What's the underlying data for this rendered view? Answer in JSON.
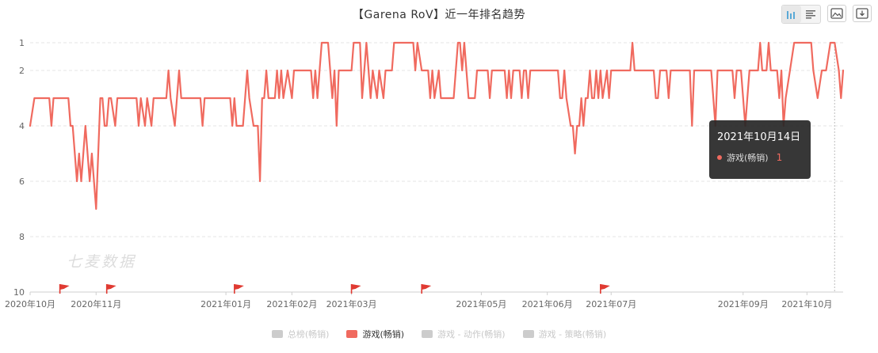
{
  "title": "【Garena RoV】近一年排名趋势",
  "toolbar": {
    "icons": [
      "bar-chart-icon",
      "list-icon",
      "image-icon",
      "download-icon"
    ]
  },
  "watermark": "七麦数据",
  "tooltip": {
    "date": "2021年10月14日",
    "series": "游戏(畅销)",
    "value": "1"
  },
  "legend": [
    {
      "label": "总榜(畅销)",
      "color": "#cccccc",
      "active": false
    },
    {
      "label": "游戏(畅销)",
      "color": "#f06a5f",
      "active": true
    },
    {
      "label": "游戏 - 动作(畅销)",
      "color": "#cccccc",
      "active": false
    },
    {
      "label": "游戏 - 策略(畅销)",
      "color": "#cccccc",
      "active": false
    }
  ],
  "colors": {
    "line": "#f06a5f",
    "grid": "#e6e6e6",
    "axis": "#d9d9d9",
    "flag": "#e03a32"
  },
  "chart_data": {
    "type": "line",
    "title": "【Garena RoV】近一年排名趋势",
    "y_inverted": true,
    "ylim": [
      1,
      10
    ],
    "yticks": [
      1,
      2,
      4,
      6,
      8,
      10
    ],
    "xlim": [
      "2020-10-01",
      "2021-10-18"
    ],
    "xticks": [
      {
        "date": "2020-10-01",
        "label": "2020年10月"
      },
      {
        "date": "2020-11-01",
        "label": "2020年11月"
      },
      {
        "date": "2021-01-01",
        "label": "2021年01月"
      },
      {
        "date": "2021-02-01",
        "label": "2021年02月"
      },
      {
        "date": "2021-03-01",
        "label": "2021年03月"
      },
      {
        "date": "2021-05-01",
        "label": "2021年05月"
      },
      {
        "date": "2021-06-01",
        "label": "2021年06月"
      },
      {
        "date": "2021-07-01",
        "label": "2021年07月"
      },
      {
        "date": "2021-09-01",
        "label": "2021年09月"
      },
      {
        "date": "2021-10-01",
        "label": "2021年10月"
      }
    ],
    "event_flags": [
      "2020-10-15",
      "2020-11-06",
      "2021-01-05",
      "2021-03-01",
      "2021-04-03",
      "2021-06-26"
    ],
    "series": [
      {
        "name": "游戏(畅销)",
        "points": [
          [
            "2020-10-01",
            4
          ],
          [
            "2020-10-03",
            3
          ],
          [
            "2020-10-10",
            3
          ],
          [
            "2020-10-11",
            4
          ],
          [
            "2020-10-12",
            3
          ],
          [
            "2020-10-19",
            3
          ],
          [
            "2020-10-20",
            4
          ],
          [
            "2020-10-21",
            4
          ],
          [
            "2020-10-23",
            6
          ],
          [
            "2020-10-24",
            5
          ],
          [
            "2020-10-25",
            6
          ],
          [
            "2020-10-27",
            4
          ],
          [
            "2020-10-29",
            6
          ],
          [
            "2020-10-30",
            5
          ],
          [
            "2020-11-01",
            7
          ],
          [
            "2020-11-03",
            3
          ],
          [
            "2020-11-04",
            3
          ],
          [
            "2020-11-05",
            4
          ],
          [
            "2020-11-06",
            4
          ],
          [
            "2020-11-07",
            3
          ],
          [
            "2020-11-08",
            3
          ],
          [
            "2020-11-10",
            4
          ],
          [
            "2020-11-11",
            3
          ],
          [
            "2020-11-20",
            3
          ],
          [
            "2020-11-21",
            4
          ],
          [
            "2020-11-22",
            3
          ],
          [
            "2020-11-24",
            4
          ],
          [
            "2020-11-25",
            3
          ],
          [
            "2020-11-27",
            4
          ],
          [
            "2020-11-28",
            3
          ],
          [
            "2020-12-04",
            3
          ],
          [
            "2020-12-05",
            2
          ],
          [
            "2020-12-06",
            3
          ],
          [
            "2020-12-08",
            4
          ],
          [
            "2020-12-09",
            3
          ],
          [
            "2020-12-10",
            2
          ],
          [
            "2020-12-11",
            3
          ],
          [
            "2020-12-20",
            3
          ],
          [
            "2020-12-21",
            4
          ],
          [
            "2020-12-22",
            3
          ],
          [
            "2021-01-03",
            3
          ],
          [
            "2021-01-04",
            4
          ],
          [
            "2021-01-05",
            3
          ],
          [
            "2021-01-06",
            4
          ],
          [
            "2021-01-09",
            4
          ],
          [
            "2021-01-10",
            3
          ],
          [
            "2021-01-11",
            2
          ],
          [
            "2021-01-12",
            3
          ],
          [
            "2021-01-14",
            4
          ],
          [
            "2021-01-16",
            4
          ],
          [
            "2021-01-17",
            6
          ],
          [
            "2021-01-18",
            3
          ],
          [
            "2021-01-19",
            3
          ],
          [
            "2021-01-20",
            2
          ],
          [
            "2021-01-21",
            3
          ],
          [
            "2021-01-24",
            3
          ],
          [
            "2021-01-25",
            2
          ],
          [
            "2021-01-26",
            3
          ],
          [
            "2021-01-27",
            2
          ],
          [
            "2021-01-28",
            3
          ],
          [
            "2021-01-30",
            2
          ],
          [
            "2021-02-01",
            3
          ],
          [
            "2021-02-02",
            2
          ],
          [
            "2021-02-10",
            2
          ],
          [
            "2021-02-11",
            3
          ],
          [
            "2021-02-12",
            2
          ],
          [
            "2021-02-13",
            3
          ],
          [
            "2021-02-14",
            2
          ],
          [
            "2021-02-15",
            1
          ],
          [
            "2021-02-18",
            1
          ],
          [
            "2021-02-19",
            2
          ],
          [
            "2021-02-20",
            3
          ],
          [
            "2021-02-21",
            2
          ],
          [
            "2021-02-22",
            4
          ],
          [
            "2021-02-23",
            2
          ],
          [
            "2021-03-01",
            2
          ],
          [
            "2021-03-02",
            1
          ],
          [
            "2021-03-05",
            1
          ],
          [
            "2021-03-06",
            3
          ],
          [
            "2021-03-07",
            2
          ],
          [
            "2021-03-08",
            1
          ],
          [
            "2021-03-09",
            2
          ],
          [
            "2021-03-10",
            3
          ],
          [
            "2021-03-11",
            2
          ],
          [
            "2021-03-13",
            3
          ],
          [
            "2021-03-14",
            2
          ],
          [
            "2021-03-16",
            3
          ],
          [
            "2021-03-17",
            2
          ],
          [
            "2021-03-20",
            2
          ],
          [
            "2021-03-21",
            1
          ],
          [
            "2021-03-30",
            1
          ],
          [
            "2021-03-31",
            2
          ],
          [
            "2021-04-01",
            1
          ],
          [
            "2021-04-03",
            2
          ],
          [
            "2021-04-06",
            2
          ],
          [
            "2021-04-07",
            3
          ],
          [
            "2021-04-08",
            2
          ],
          [
            "2021-04-09",
            3
          ],
          [
            "2021-04-11",
            2
          ],
          [
            "2021-04-12",
            3
          ],
          [
            "2021-04-18",
            3
          ],
          [
            "2021-04-19",
            2
          ],
          [
            "2021-04-20",
            1
          ],
          [
            "2021-04-21",
            1
          ],
          [
            "2021-04-22",
            2
          ],
          [
            "2021-04-23",
            1
          ],
          [
            "2021-04-24",
            2
          ],
          [
            "2021-04-25",
            3
          ],
          [
            "2021-04-28",
            3
          ],
          [
            "2021-04-29",
            2
          ],
          [
            "2021-05-04",
            2
          ],
          [
            "2021-05-05",
            3
          ],
          [
            "2021-05-06",
            2
          ],
          [
            "2021-05-12",
            2
          ],
          [
            "2021-05-13",
            3
          ],
          [
            "2021-05-14",
            2
          ],
          [
            "2021-05-15",
            3
          ],
          [
            "2021-05-16",
            2
          ],
          [
            "2021-05-19",
            2
          ],
          [
            "2021-05-20",
            3
          ],
          [
            "2021-05-21",
            2
          ],
          [
            "2021-05-22",
            2
          ],
          [
            "2021-05-23",
            3
          ],
          [
            "2021-05-24",
            2
          ],
          [
            "2021-06-06",
            2
          ],
          [
            "2021-06-07",
            3
          ],
          [
            "2021-06-08",
            3
          ],
          [
            "2021-06-09",
            2
          ],
          [
            "2021-06-10",
            3
          ],
          [
            "2021-06-12",
            4
          ],
          [
            "2021-06-13",
            4
          ],
          [
            "2021-06-14",
            5
          ],
          [
            "2021-06-15",
            4
          ],
          [
            "2021-06-16",
            4
          ],
          [
            "2021-06-17",
            3
          ],
          [
            "2021-06-18",
            4
          ],
          [
            "2021-06-19",
            3
          ],
          [
            "2021-06-20",
            3
          ],
          [
            "2021-06-21",
            2
          ],
          [
            "2021-06-22",
            3
          ],
          [
            "2021-06-23",
            3
          ],
          [
            "2021-06-24",
            2
          ],
          [
            "2021-06-25",
            3
          ],
          [
            "2021-06-26",
            2
          ],
          [
            "2021-06-27",
            3
          ],
          [
            "2021-06-29",
            2
          ],
          [
            "2021-06-30",
            3
          ],
          [
            "2021-07-01",
            2
          ],
          [
            "2021-07-10",
            2
          ],
          [
            "2021-07-11",
            1
          ],
          [
            "2021-07-12",
            2
          ],
          [
            "2021-07-21",
            2
          ],
          [
            "2021-07-22",
            3
          ],
          [
            "2021-07-23",
            3
          ],
          [
            "2021-07-24",
            2
          ],
          [
            "2021-07-27",
            2
          ],
          [
            "2021-07-28",
            3
          ],
          [
            "2021-07-29",
            2
          ],
          [
            "2021-08-07",
            2
          ],
          [
            "2021-08-08",
            4
          ],
          [
            "2021-08-09",
            2
          ],
          [
            "2021-08-17",
            2
          ],
          [
            "2021-08-18",
            3
          ],
          [
            "2021-08-19",
            4
          ],
          [
            "2021-08-20",
            2
          ],
          [
            "2021-08-27",
            2
          ],
          [
            "2021-08-28",
            3
          ],
          [
            "2021-08-29",
            2
          ],
          [
            "2021-08-31",
            2
          ],
          [
            "2021-09-01",
            3
          ],
          [
            "2021-09-02",
            4
          ],
          [
            "2021-09-03",
            3
          ],
          [
            "2021-09-04",
            2
          ],
          [
            "2021-09-08",
            2
          ],
          [
            "2021-09-09",
            1
          ],
          [
            "2021-09-10",
            2
          ],
          [
            "2021-09-12",
            2
          ],
          [
            "2021-09-13",
            1
          ],
          [
            "2021-09-14",
            2
          ],
          [
            "2021-09-17",
            2
          ],
          [
            "2021-09-18",
            3
          ],
          [
            "2021-09-19",
            2
          ],
          [
            "2021-09-20",
            4
          ],
          [
            "2021-09-21",
            3
          ],
          [
            "2021-09-23",
            2
          ],
          [
            "2021-09-25",
            1
          ],
          [
            "2021-10-03",
            1
          ],
          [
            "2021-10-04",
            2
          ],
          [
            "2021-10-06",
            3
          ],
          [
            "2021-10-08",
            2
          ],
          [
            "2021-10-10",
            2
          ],
          [
            "2021-10-12",
            1
          ],
          [
            "2021-10-14",
            1
          ],
          [
            "2021-10-16",
            2
          ],
          [
            "2021-10-17",
            3
          ],
          [
            "2021-10-18",
            2
          ]
        ]
      }
    ]
  }
}
